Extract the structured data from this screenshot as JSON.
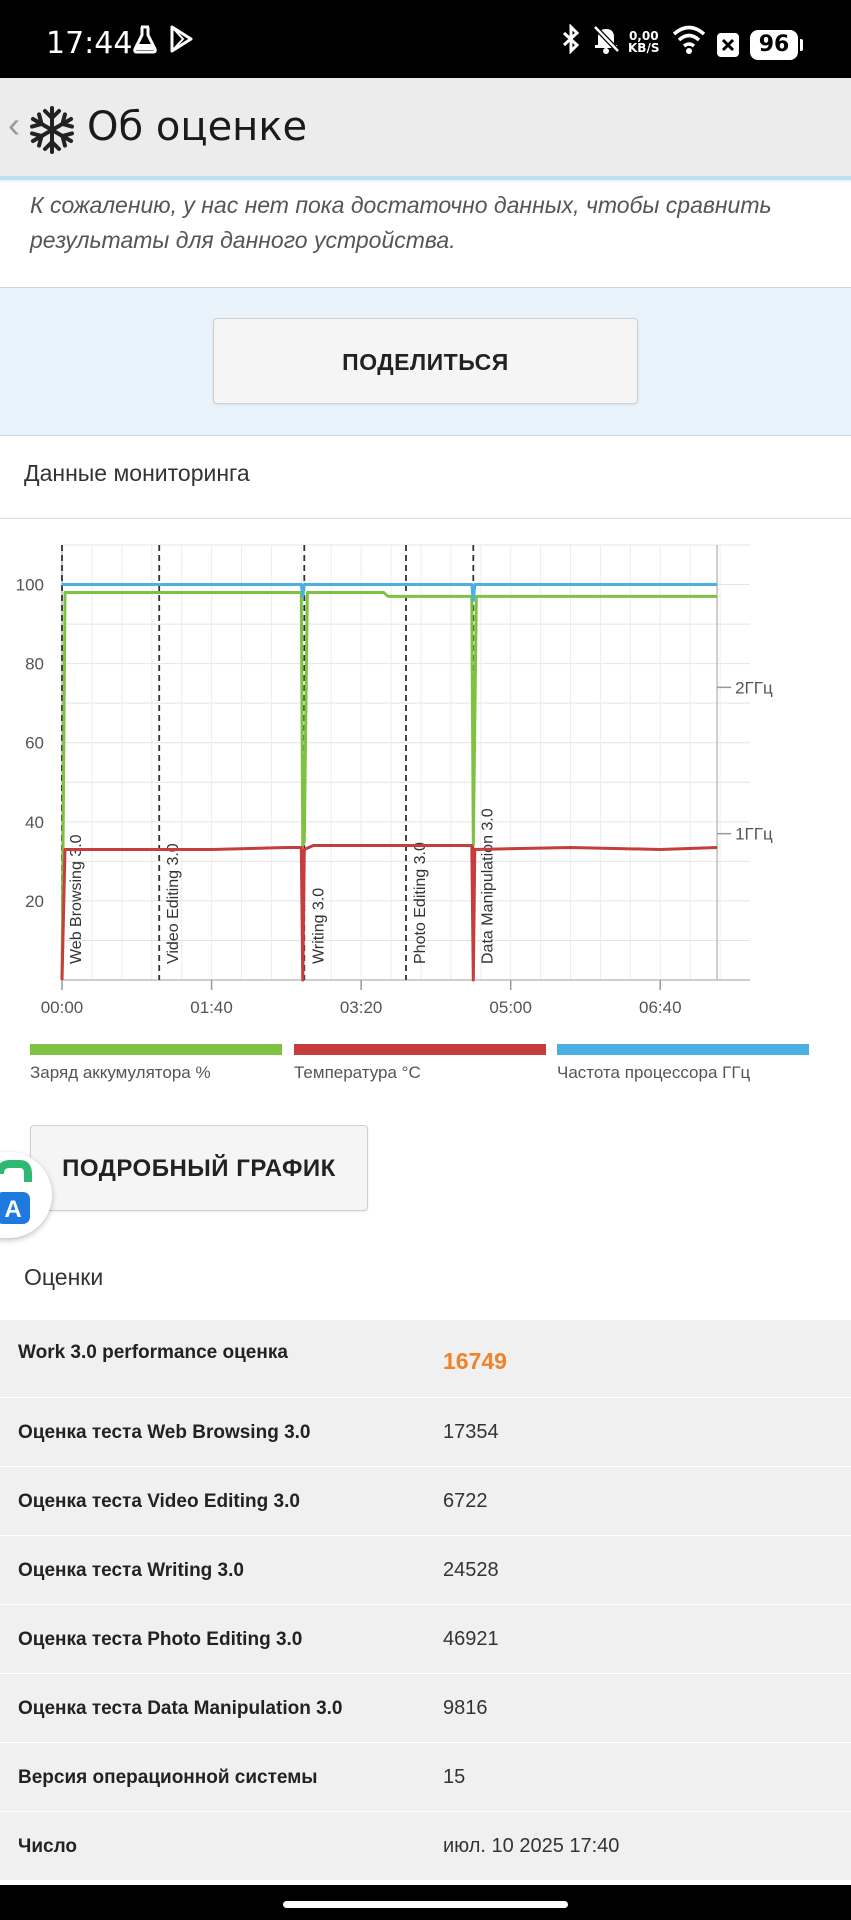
{
  "status_bar": {
    "time": "17:44",
    "speed_value": "0,00",
    "speed_unit": "KB/S",
    "battery": "96",
    "icons": [
      "flask-icon",
      "play-store-icon",
      "bluetooth-icon",
      "bell-muted-icon",
      "wifi-icon",
      "close-box-icon"
    ]
  },
  "app_bar": {
    "title": "Об оценке",
    "logo_icon": "snowflake-icon",
    "back_icon": "chevron-left-icon"
  },
  "notice": {
    "text": "К сожалению, у нас нет пока достаточно данных, чтобы сравнить результаты для данного устройства."
  },
  "share_button": {
    "label": "ПОДЕЛИТЬСЯ"
  },
  "monitoring": {
    "title": "Данные мониторинга",
    "detail_button_label": "ПОДРОБНЫЙ ГРАФИК"
  },
  "chart_data": {
    "type": "line",
    "x_unit": "time (mm:ss)",
    "x_range_seconds": [
      0,
      460
    ],
    "xlim_labels": [
      "00:00",
      "01:40",
      "03:20",
      "05:00",
      "06:40"
    ],
    "x_ticks_seconds": [
      0,
      100,
      200,
      300,
      400
    ],
    "ylim": [
      0,
      110
    ],
    "y_ticks": [
      20,
      40,
      60,
      80,
      100
    ],
    "y2_ticks": [
      {
        "label": "1ГГц",
        "left_value": 37
      },
      {
        "label": "2ГГц",
        "left_value": 74
      }
    ],
    "grid": true,
    "phase_markers": [
      {
        "t": 0,
        "label": "Web Browsing 3.0"
      },
      {
        "t": 65,
        "label": "Video Editing 3.0"
      },
      {
        "t": 162,
        "label": "Writing 3.0"
      },
      {
        "t": 230,
        "label": "Photo Editing 3.0"
      },
      {
        "t": 275,
        "label": "Data Manipulation 3.0"
      }
    ],
    "series": [
      {
        "name": "Заряд аккумулятора %",
        "color": "#7fc241",
        "points": [
          [
            0,
            0
          ],
          [
            2,
            98
          ],
          [
            160,
            98
          ],
          [
            161,
            34
          ],
          [
            162,
            35
          ],
          [
            164,
            98
          ],
          [
            215,
            98
          ],
          [
            218,
            97
          ],
          [
            274,
            97
          ],
          [
            275,
            34
          ],
          [
            277,
            97
          ],
          [
            438,
            97
          ]
        ]
      },
      {
        "name": "Температура °C",
        "color": "#c53d3d",
        "points": [
          [
            0,
            0
          ],
          [
            2,
            33
          ],
          [
            100,
            33
          ],
          [
            150,
            33.5
          ],
          [
            160,
            33.5
          ],
          [
            161,
            0
          ],
          [
            162,
            33
          ],
          [
            168,
            34
          ],
          [
            220,
            34
          ],
          [
            274,
            34
          ],
          [
            275,
            0
          ],
          [
            276,
            33
          ],
          [
            340,
            33.5
          ],
          [
            400,
            33
          ],
          [
            438,
            33.5
          ]
        ]
      },
      {
        "name": "Частота процессора ГГц",
        "color": "#4ab0e3",
        "points": [
          [
            0,
            100
          ],
          [
            160,
            100
          ],
          [
            161,
            97
          ],
          [
            162,
            100
          ],
          [
            274,
            100
          ],
          [
            275,
            96
          ],
          [
            276,
            100
          ],
          [
            438,
            100
          ]
        ]
      }
    ]
  },
  "legend": [
    {
      "label": "Заряд аккумулятора %",
      "color": "#7fc241"
    },
    {
      "label": "Температура °C",
      "color": "#c53d3d"
    },
    {
      "label": "Частота процессора ГГц",
      "color": "#4ab0e3"
    }
  ],
  "scores": {
    "title": "Оценки",
    "rows": [
      {
        "label": "Work 3.0 performance оценка",
        "value": "16749"
      },
      {
        "label": "Оценка теста Web Browsing 3.0",
        "value": "17354"
      },
      {
        "label": "Оценка теста Video Editing 3.0",
        "value": "6722"
      },
      {
        "label": "Оценка теста Writing 3.0",
        "value": "24528"
      },
      {
        "label": "Оценка теста Photo Editing 3.0",
        "value": "46921"
      },
      {
        "label": "Оценка теста Data Manipulation 3.0",
        "value": "9816"
      },
      {
        "label": "Версия операционной системы",
        "value": "15"
      },
      {
        "label": "Число",
        "value": "июл. 10 2025 17:40"
      }
    ]
  },
  "floating_button": {
    "letter": "A",
    "icon": "translate-app-icon"
  }
}
